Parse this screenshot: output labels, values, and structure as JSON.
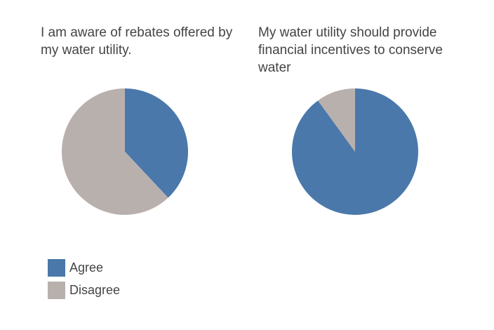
{
  "chart_data": [
    {
      "type": "pie",
      "title": "I am aware of rebates offered by my water utility.",
      "categories": [
        "Agree",
        "Disagree"
      ],
      "values": [
        38,
        62
      ]
    },
    {
      "type": "pie",
      "title": "My water utility should provide financial incentives to conserve water",
      "categories": [
        "Agree",
        "Disagree"
      ],
      "values": [
        90,
        10
      ]
    }
  ],
  "legend": {
    "placement": "bottom-left",
    "items": [
      {
        "label": "Agree",
        "color": "#4a78aa"
      },
      {
        "label": "Disagree",
        "color": "#b8b0ad"
      }
    ]
  }
}
